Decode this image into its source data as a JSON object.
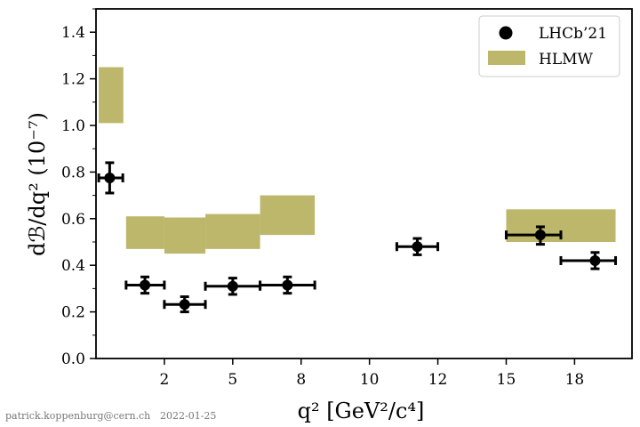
{
  "chart_data": {
    "type": "scatter",
    "xlabel": "q² [GeV²/c⁴]",
    "ylabel": "dℬ/dq² (10⁻⁷)",
    "xlim": [
      0,
      19.6
    ],
    "ylim": [
      0,
      1.5
    ],
    "x_ticks": [
      {
        "value": 2.5,
        "label": "2"
      },
      {
        "value": 5.0,
        "label": "5"
      },
      {
        "value": 7.5,
        "label": "8"
      },
      {
        "value": 10.0,
        "label": "10"
      },
      {
        "value": 12.5,
        "label": "12"
      },
      {
        "value": 15.0,
        "label": "15"
      },
      {
        "value": 17.5,
        "label": "18"
      }
    ],
    "y_ticks": [
      0.0,
      0.2,
      0.4,
      0.6,
      0.8,
      1.0,
      1.2,
      1.4
    ],
    "legend_position": "top-right",
    "grid": false,
    "series": [
      {
        "name": "LHCb’21",
        "kind": "points",
        "color": "#000000",
        "points": [
          {
            "x": 0.5,
            "xlo": 0.1,
            "xhi": 0.98,
            "y": 0.775,
            "ylo": 0.71,
            "yhi": 0.84
          },
          {
            "x": 1.79,
            "xlo": 1.1,
            "xhi": 2.5,
            "y": 0.315,
            "ylo": 0.28,
            "yhi": 0.35
          },
          {
            "x": 3.24,
            "xlo": 2.5,
            "xhi": 4.0,
            "y": 0.232,
            "ylo": 0.2,
            "yhi": 0.265
          },
          {
            "x": 5.0,
            "xlo": 4.0,
            "xhi": 6.0,
            "y": 0.31,
            "ylo": 0.275,
            "yhi": 0.345
          },
          {
            "x": 7.0,
            "xlo": 6.0,
            "xhi": 8.0,
            "y": 0.315,
            "ylo": 0.28,
            "yhi": 0.35
          },
          {
            "x": 11.75,
            "xlo": 11.0,
            "xhi": 12.5,
            "y": 0.48,
            "ylo": 0.445,
            "yhi": 0.515
          },
          {
            "x": 16.25,
            "xlo": 15.0,
            "xhi": 17.0,
            "y": 0.53,
            "ylo": 0.49,
            "yhi": 0.565
          },
          {
            "x": 18.25,
            "xlo": 17.0,
            "xhi": 19.0,
            "y": 0.42,
            "ylo": 0.385,
            "yhi": 0.455
          }
        ]
      },
      {
        "name": "HLMW",
        "kind": "bands",
        "color": "#bdb76b",
        "bands": [
          {
            "xlo": 0.1,
            "xhi": 1.0,
            "ylo": 1.01,
            "yhi": 1.25
          },
          {
            "xlo": 1.1,
            "xhi": 2.5,
            "ylo": 0.47,
            "yhi": 0.61
          },
          {
            "xlo": 2.5,
            "xhi": 4.0,
            "ylo": 0.45,
            "yhi": 0.605
          },
          {
            "xlo": 4.0,
            "xhi": 6.0,
            "ylo": 0.47,
            "yhi": 0.62
          },
          {
            "xlo": 6.0,
            "xhi": 8.0,
            "ylo": 0.53,
            "yhi": 0.7
          },
          {
            "xlo": 15.0,
            "xhi": 19.0,
            "ylo": 0.5,
            "yhi": 0.64
          }
        ]
      }
    ]
  },
  "credit": {
    "author": "patrick.koppenburg@cern.ch",
    "date": "2022-01-25"
  }
}
